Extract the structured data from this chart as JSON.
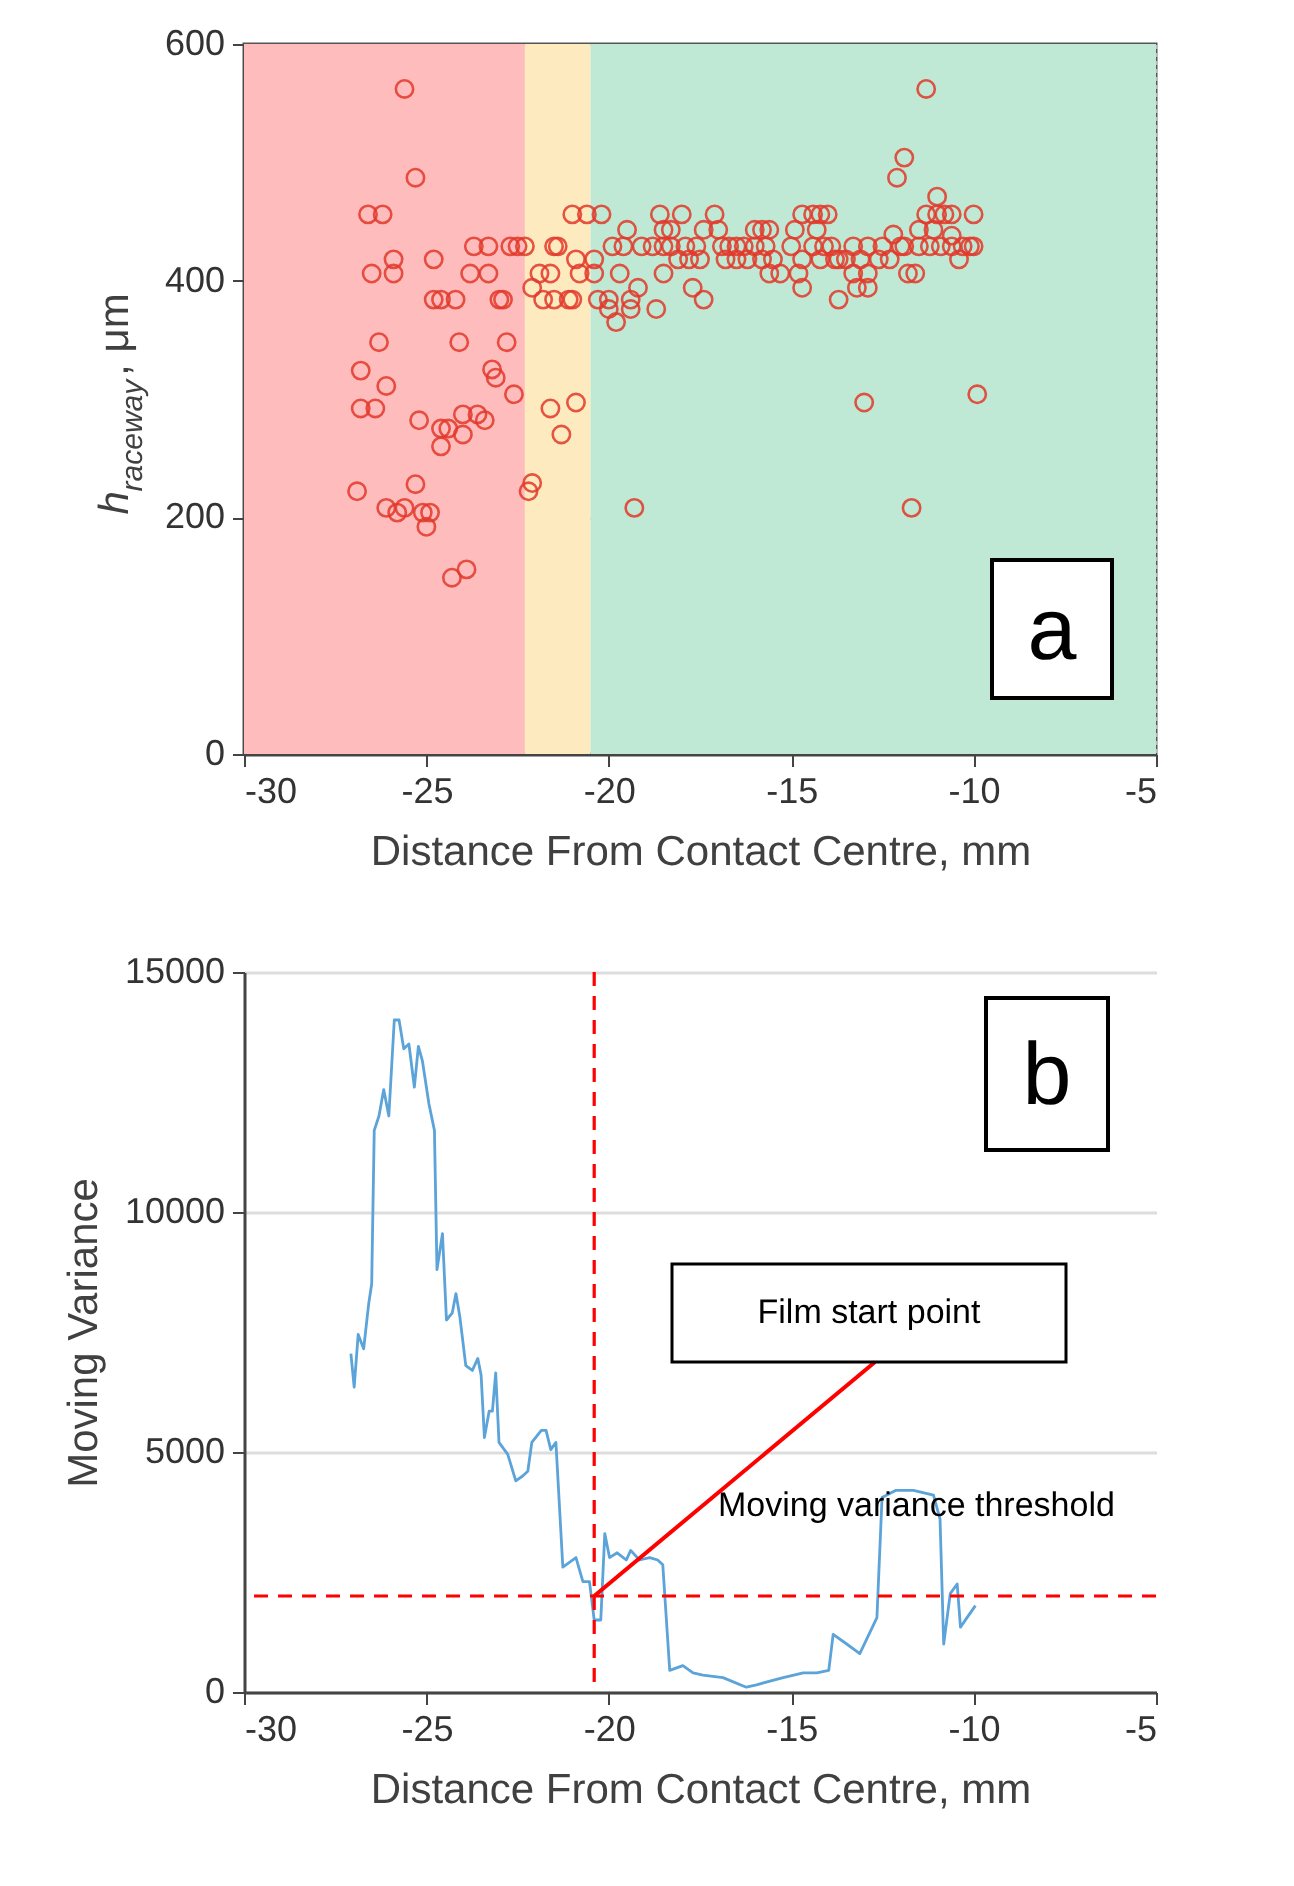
{
  "chart_data": [
    {
      "type": "scatter",
      "xlabel": "Distance From Contact Centre, mm",
      "ylabel": "h$_{raceway}$, μm",
      "xlim": [
        -30,
        -5
      ],
      "xticks": [
        -30,
        -25,
        -20,
        -15,
        -10,
        -5
      ],
      "ylim": [
        0,
        600
      ],
      "yticks": [
        0,
        200,
        400,
        600
      ],
      "grid": true,
      "marker": "circle",
      "bands": [
        {
          "axis": "x",
          "from": -30,
          "to": -22.3,
          "color": "#ffbcbc"
        },
        {
          "axis": "x",
          "from": -22.3,
          "to": -20.5,
          "color": "#fdeabf"
        },
        {
          "axis": "x",
          "from": -20.5,
          "to": -5,
          "color": "#bfe9d4"
        }
      ],
      "series": [
        {
          "color": "#e2392b",
          "x": [
            -25.6,
            -25.3,
            -26.6,
            -26.2,
            -25.9,
            -26.5,
            -25.9,
            -24.8,
            -23.7,
            -23.3,
            -22.7,
            -22.5,
            -22.3,
            -23.8,
            -23.3,
            -24.8,
            -24.6,
            -24.2,
            -23.0,
            -22.9,
            -26.3,
            -24.1,
            -22.8,
            -26.8,
            -23.2,
            -23.1,
            -26.1,
            -22.6,
            -26.8,
            -26.4,
            -25.2,
            -24.6,
            -24.4,
            -24.0,
            -23.6,
            -23.4,
            -24.0,
            -24.6,
            -26.9,
            -25.3,
            -26.1,
            -25.8,
            -25.6,
            -25.1,
            -24.9,
            -25.0,
            -24.3,
            -23.9,
            -22.1,
            -22.2,
            -21.0,
            -22.1,
            -21.9,
            -21.6,
            -21.8,
            -21.5,
            -21.1,
            -21.0,
            -21.5,
            -21.4,
            -20.9,
            -21.6,
            -20.9,
            -21.3,
            -20.6,
            -20.2,
            -20.4,
            -20.8,
            -20.4,
            -20.3,
            -20.0,
            -20.0,
            -19.8,
            -19.7,
            -19.9,
            -19.6,
            -19.5,
            -19.4,
            -19.4,
            -19.2,
            -18.7,
            -19.3,
            -18.6,
            -19.1,
            -18.8,
            -18.5,
            -18.3,
            -17.9,
            -18.5,
            -18.3,
            -18.0,
            -18.5,
            -18.1,
            -17.8,
            -17.5,
            -17.7,
            -17.4,
            -17.6,
            -17.4,
            -17.1,
            -17.0,
            -16.9,
            -16.7,
            -16.5,
            -16.3,
            -16.0,
            -15.7,
            -16.8,
            -16.5,
            -16.2,
            -15.8,
            -16.0,
            -15.8,
            -15.6,
            -15.5,
            -15.6,
            -15.3,
            -15.0,
            -14.7,
            -14.8,
            -14.7,
            -14.9,
            -14.7,
            -14.4,
            -14.2,
            -14.0,
            -14.3,
            -14.4,
            -14.1,
            -13.9,
            -14.2,
            -13.8,
            -13.7,
            -13.7,
            -13.3,
            -13.2,
            -12.9,
            -12.9,
            -12.6,
            -12.3,
            -13.5,
            -13.1,
            -13.3,
            -12.9,
            -12.5,
            -13.0,
            -12.2,
            -12.0,
            -11.9,
            -11.8,
            -11.6,
            -12.1,
            -11.9,
            -11.3,
            -11.7,
            -11.5,
            -11.2,
            -10.9,
            -10.6,
            -10.3,
            -10.1,
            -10.0,
            -11.5,
            -11.3,
            -11.0,
            -11.0,
            -10.8,
            -10.6,
            -10.6,
            -10.4,
            -10.0,
            -11.1,
            -9.9
          ],
          "values": [
            562,
            487,
            456,
            456,
            418,
            406,
            406,
            418,
            429,
            429,
            429,
            429,
            429,
            406,
            406,
            384,
            384,
            384,
            384,
            384,
            348,
            348,
            348,
            324,
            325,
            318,
            311,
            304,
            292,
            292,
            282,
            275,
            275,
            287,
            287,
            282,
            270,
            260,
            222,
            228,
            208,
            204,
            208,
            204,
            204,
            192,
            149,
            156,
            229,
            222,
            456,
            394,
            406,
            406,
            384,
            384,
            384,
            384,
            429,
            429,
            418,
            292,
            297,
            270,
            456,
            456,
            418,
            406,
            406,
            384,
            384,
            376,
            365,
            406,
            429,
            429,
            443,
            384,
            376,
            394,
            376,
            208,
            456,
            429,
            429,
            429,
            429,
            429,
            443,
            443,
            456,
            406,
            418,
            418,
            418,
            394,
            384,
            429,
            443,
            456,
            443,
            429,
            429,
            429,
            429,
            429,
            429,
            418,
            418,
            418,
            418,
            443,
            443,
            443,
            418,
            406,
            406,
            429,
            418,
            406,
            394,
            443,
            456,
            456,
            456,
            456,
            443,
            429,
            429,
            429,
            418,
            418,
            418,
            384,
            406,
            394,
            394,
            406,
            418,
            418,
            418,
            418,
            429,
            429,
            429,
            297,
            439,
            429,
            429,
            406,
            406,
            487,
            504,
            562,
            208,
            429,
            429,
            429,
            429,
            429,
            429,
            429,
            443,
            456,
            471,
            456,
            456,
            456,
            438,
            418,
            456,
            443,
            304
          ]
        }
      ],
      "annotations": [
        "a"
      ]
    },
    {
      "type": "line",
      "xlabel": "Distance From Contact Centre, mm",
      "ylabel": "Moving Variance",
      "xlim": [
        -30,
        -5
      ],
      "xticks": [
        -30,
        -25,
        -20,
        -15,
        -10,
        -5
      ],
      "ylim": [
        0,
        15000
      ],
      "yticks": [
        0,
        5000,
        10000,
        15000
      ],
      "grid": "y",
      "series": [
        {
          "color": "#5ba3d9",
          "x": [
            -27.07,
            -26.98,
            -26.87,
            -26.72,
            -26.58,
            -26.5,
            -26.43,
            -26.3,
            -26.17,
            -26.03,
            -25.88,
            -25.75,
            -25.62,
            -25.48,
            -25.33,
            -25.22,
            -25.11,
            -24.93,
            -24.78,
            -24.71,
            -24.56,
            -24.45,
            -24.29,
            -24.19,
            -24.08,
            -23.92,
            -23.74,
            -23.59,
            -23.5,
            -23.41,
            -23.28,
            -23.19,
            -23.1,
            -23.01,
            -22.77,
            -22.55,
            -22.36,
            -22.22,
            -22.11,
            -21.85,
            -21.72,
            -21.59,
            -21.45,
            -21.26,
            -21.08,
            -20.9,
            -20.71,
            -20.53,
            -20.4,
            -20.22,
            -20.11,
            -19.98,
            -19.77,
            -19.52,
            -19.4,
            -19.16,
            -18.88,
            -18.66,
            -18.52,
            -18.33,
            -17.97,
            -17.69,
            -17.42,
            -16.87,
            -16.23,
            -15.95,
            -15.22,
            -14.67,
            -14.3,
            -13.97,
            -13.85,
            -13.48,
            -13.12,
            -12.93,
            -12.65,
            -12.51,
            -12.14,
            -11.65,
            -11.1,
            -10.92,
            -10.82,
            -10.64,
            -10.45,
            -10.36,
            -10.18,
            -9.95
          ],
          "values": [
            7050,
            6350,
            7450,
            7150,
            8100,
            8500,
            11700,
            12000,
            12550,
            12000,
            14000,
            14000,
            13400,
            13500,
            12600,
            13450,
            13150,
            12250,
            11700,
            8800,
            9550,
            7750,
            7900,
            8300,
            7800,
            6800,
            6700,
            6950,
            6600,
            5300,
            5850,
            5850,
            6650,
            5200,
            4950,
            4400,
            4500,
            4600,
            5200,
            5450,
            5450,
            5050,
            5200,
            2600,
            2700,
            2800,
            2300,
            2300,
            1500,
            1500,
            3300,
            2800,
            2900,
            2750,
            2950,
            2750,
            2800,
            2750,
            2650,
            450,
            550,
            400,
            350,
            300,
            100,
            150,
            300,
            400,
            400,
            450,
            1200,
            1000,
            800,
            1100,
            1550,
            4050,
            4200,
            4200,
            4100,
            3600,
            1000,
            2050,
            2250,
            1350,
            1550,
            1800
          ]
        }
      ],
      "ref_lines": [
        {
          "axis": "y",
          "value": 2000,
          "label": "Moving variance threshold",
          "color": "#ff0000",
          "line_style": "dashed"
        },
        {
          "axis": "x",
          "value": -20.4,
          "color": "#ff0000",
          "line_style": "dashed"
        }
      ],
      "annotations": [
        "b",
        {
          "text": "Film start point",
          "x": -20.4,
          "y": 2000
        }
      ]
    }
  ]
}
